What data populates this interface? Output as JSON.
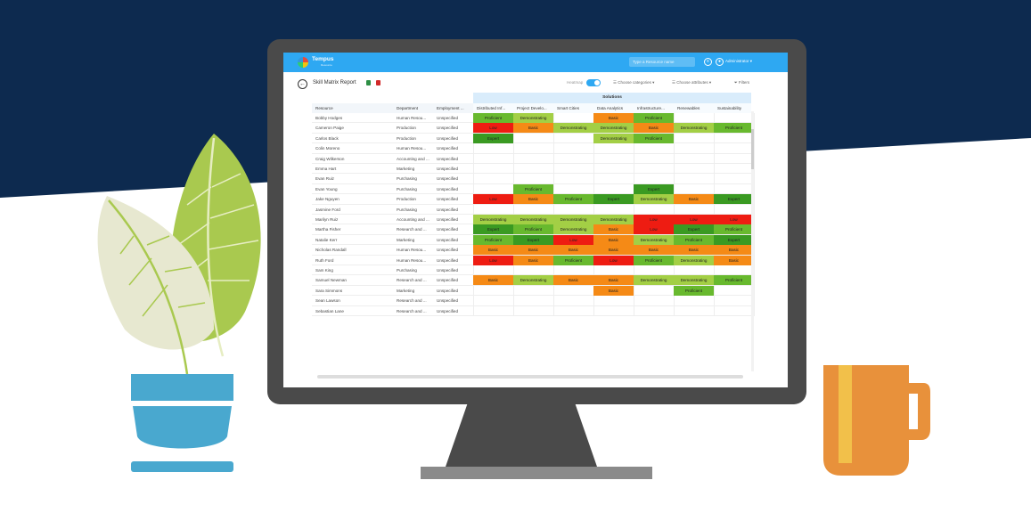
{
  "colors": {
    "navy": "#0d2a4f",
    "topbar": "#2ea8f2",
    "expert": "#3a9a22",
    "proficient": "#68b92e",
    "demonstrating": "#a3cf45",
    "basic": "#f58a16",
    "low": "#ee1c12"
  },
  "app": {
    "name": "Tempus",
    "tagline": "Resource",
    "search_placeholder": "Type a Resource name",
    "user": "Administrator"
  },
  "report": {
    "title": "Skill Matrix Report",
    "heatmap_label": "Heatmap",
    "choose_categories": "Choose categories",
    "choose_attributes": "Choose attributes",
    "filters": "Filters"
  },
  "table": {
    "group_header": "Solutions",
    "columns": [
      "Resource",
      "Department",
      "Employment ..."
    ],
    "skill_columns": [
      "Distributed Inf...",
      "Project Develo...",
      "Smart Cities",
      "Data Analytics",
      "Infrastructure...",
      "Renewables",
      "Sustainability"
    ],
    "rows": [
      {
        "name": "Bobby Hodges",
        "dept": "Human Resou...",
        "emp": "Unspecified",
        "skills": [
          "Proficient",
          "Demonstrating",
          "",
          "Basic",
          "Proficient",
          "",
          ""
        ]
      },
      {
        "name": "Cameron Paige",
        "dept": "Production",
        "emp": "Unspecified",
        "skills": [
          "Low",
          "Basic",
          "Demonstrating",
          "Demonstrating",
          "Basic",
          "Demonstrating",
          "Proficient"
        ]
      },
      {
        "name": "Carlos Black",
        "dept": "Production",
        "emp": "Unspecified",
        "skills": [
          "Expert",
          "",
          "",
          "Demonstrating",
          "Proficient",
          "",
          ""
        ]
      },
      {
        "name": "Colin Moreno",
        "dept": "Human Resou...",
        "emp": "Unspecified",
        "skills": [
          "",
          "",
          "",
          "",
          "",
          "",
          ""
        ]
      },
      {
        "name": "Craig Wilkerson",
        "dept": "Accounting and ...",
        "emp": "Unspecified",
        "skills": [
          "",
          "",
          "",
          "",
          "",
          "",
          ""
        ]
      },
      {
        "name": "Emma Hart",
        "dept": "Marketing",
        "emp": "Unspecified",
        "skills": [
          "",
          "",
          "",
          "",
          "",
          "",
          ""
        ]
      },
      {
        "name": "Evan Ruiz",
        "dept": "Purchasing",
        "emp": "Unspecified",
        "skills": [
          "",
          "",
          "",
          "",
          "",
          "",
          ""
        ]
      },
      {
        "name": "Evan Young",
        "dept": "Purchasing",
        "emp": "Unspecified",
        "skills": [
          "",
          "Proficient",
          "",
          "",
          "Expert",
          "",
          ""
        ]
      },
      {
        "name": "Jake Nguyen",
        "dept": "Production",
        "emp": "Unspecified",
        "skills": [
          "Low",
          "Basic",
          "Proficient",
          "Expert",
          "Demonstrating",
          "Basic",
          "Expert"
        ]
      },
      {
        "name": "Jasmine Ford",
        "dept": "Purchasing",
        "emp": "Unspecified",
        "skills": [
          "",
          "",
          "",
          "",
          "",
          "",
          ""
        ]
      },
      {
        "name": "Marilyn Ruiz",
        "dept": "Accounting and ...",
        "emp": "Unspecified",
        "skills": [
          "Demonstrating",
          "Demonstrating",
          "Demonstrating",
          "Demonstrating",
          "Low",
          "Low",
          "Low"
        ]
      },
      {
        "name": "Martha Fisher",
        "dept": "Research and ...",
        "emp": "Unspecified",
        "skills": [
          "Expert",
          "Proficient",
          "Demonstrating",
          "Basic",
          "Low",
          "Expert",
          "Proficient"
        ]
      },
      {
        "name": "Natalie Kerr",
        "dept": "Marketing",
        "emp": "Unspecified",
        "skills": [
          "Proficient",
          "Expert",
          "Low",
          "Basic",
          "Demonstrating",
          "Proficient",
          "Expert"
        ]
      },
      {
        "name": "Nicholas Randall",
        "dept": "Human Resou...",
        "emp": "Unspecified",
        "skills": [
          "Basic",
          "Basic",
          "Basic",
          "Basic",
          "Basic",
          "Basic",
          "Basic"
        ]
      },
      {
        "name": "Ruth Ford",
        "dept": "Human Resou...",
        "emp": "Unspecified",
        "skills": [
          "Low",
          "Basic",
          "Proficient",
          "Low",
          "Proficient",
          "Demonstrating",
          "Basic"
        ]
      },
      {
        "name": "Sam King",
        "dept": "Purchasing",
        "emp": "Unspecified",
        "skills": [
          "",
          "",
          "",
          "",
          "",
          "",
          ""
        ]
      },
      {
        "name": "Samuel Newman",
        "dept": "Research and ...",
        "emp": "Unspecified",
        "skills": [
          "Basic",
          "Demonstrating",
          "Basic",
          "Basic",
          "Demonstrating",
          "Demonstrating",
          "Proficient"
        ]
      },
      {
        "name": "Sara Simmons",
        "dept": "Marketing",
        "emp": "Unspecified",
        "skills": [
          "",
          "",
          "",
          "Basic",
          "",
          "Proficient",
          ""
        ]
      },
      {
        "name": "Sean Lawson",
        "dept": "Research and ...",
        "emp": "Unspecified",
        "skills": [
          "",
          "",
          "",
          "",
          "",
          "",
          ""
        ]
      },
      {
        "name": "Sebastian Lane",
        "dept": "Research and ...",
        "emp": "Unspecified",
        "skills": [
          "",
          "",
          "",
          "",
          "",
          "",
          ""
        ]
      }
    ]
  }
}
